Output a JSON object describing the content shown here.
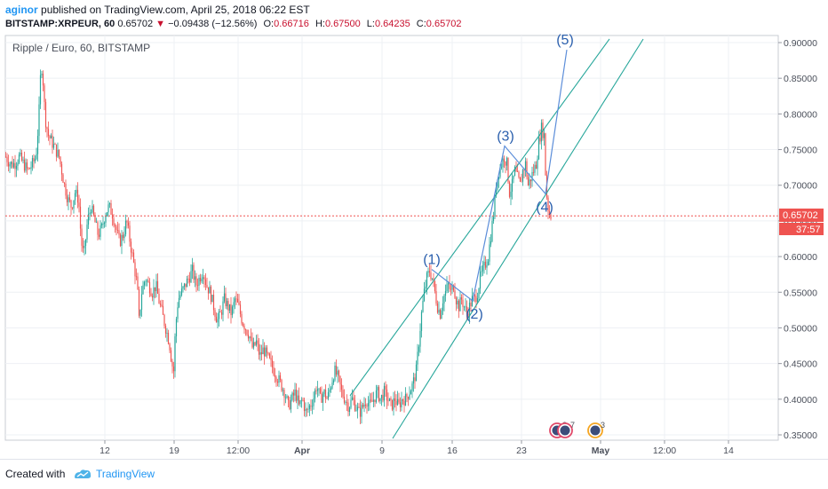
{
  "header": {
    "author": "aginor",
    "published_text": "published on TradingView.com, April 25, 2018 06:22 EST",
    "symbol": "BITSTAMP:XRPEUR, 60",
    "last": "0.65702",
    "change_arrow": "▼",
    "change": "−0.09438 (−12.56%)",
    "open_label": "O:",
    "open": "0.66716",
    "high_label": "H:",
    "high": "0.67500",
    "low_label": "L:",
    "low": "0.64235",
    "close_label": "C:",
    "close": "0.65702"
  },
  "footer": {
    "created_with": "Created with",
    "brand": "TradingView"
  },
  "colors": {
    "up": "#26a69a",
    "down": "#ef5350",
    "channel": "#26a69a",
    "wave": "#5b8dd9",
    "wave_label": "#2a5fad",
    "last_price": "#ef5350",
    "grid": "#eef0f4"
  },
  "chart_data": {
    "type": "candlestick",
    "title": "Ripple / Euro, 60, BITSTAMP",
    "x_ticks": [
      "12",
      "19",
      "12:00",
      "Apr",
      "9",
      "16",
      "23",
      "May",
      "12:00",
      "14"
    ],
    "y_ticks": [
      "0.90000",
      "0.85000",
      "0.80000",
      "0.75000",
      "0.70000",
      "0.65000",
      "0.60000",
      "0.55000",
      "0.50000",
      "0.45000",
      "0.40000",
      "0.35000"
    ],
    "ylim": [
      0.34,
      0.905
    ],
    "last_price": 0.65702,
    "last_price_label": "0.65702",
    "countdown": "37:57",
    "price_path": [
      [
        0,
        0.74
      ],
      [
        5,
        0.73
      ],
      [
        10,
        0.73
      ],
      [
        15,
        0.74
      ],
      [
        20,
        0.73
      ],
      [
        25,
        0.72
      ],
      [
        30,
        0.73
      ],
      [
        34,
        0.74
      ],
      [
        37,
        0.79
      ],
      [
        39,
        0.85
      ],
      [
        41,
        0.87
      ],
      [
        43,
        0.82
      ],
      [
        45,
        0.79
      ],
      [
        48,
        0.77
      ],
      [
        52,
        0.76
      ],
      [
        56,
        0.75
      ],
      [
        60,
        0.74
      ],
      [
        63,
        0.72
      ],
      [
        66,
        0.7
      ],
      [
        70,
        0.68
      ],
      [
        74,
        0.67
      ],
      [
        78,
        0.69
      ],
      [
        82,
        0.68
      ],
      [
        85,
        0.62
      ],
      [
        88,
        0.6
      ],
      [
        92,
        0.65
      ],
      [
        96,
        0.67
      ],
      [
        100,
        0.65
      ],
      [
        104,
        0.63
      ],
      [
        108,
        0.64
      ],
      [
        112,
        0.66
      ],
      [
        116,
        0.67
      ],
      [
        120,
        0.66
      ],
      [
        124,
        0.64
      ],
      [
        128,
        0.62
      ],
      [
        132,
        0.63
      ],
      [
        136,
        0.65
      ],
      [
        140,
        0.62
      ],
      [
        144,
        0.59
      ],
      [
        148,
        0.56
      ],
      [
        150,
        0.51
      ],
      [
        153,
        0.55
      ],
      [
        157,
        0.57
      ],
      [
        161,
        0.56
      ],
      [
        165,
        0.55
      ],
      [
        169,
        0.56
      ],
      [
        172,
        0.54
      ],
      [
        176,
        0.52
      ],
      [
        180,
        0.5
      ],
      [
        184,
        0.48
      ],
      [
        187,
        0.45
      ],
      [
        189,
        0.44
      ],
      [
        191,
        0.5
      ],
      [
        194,
        0.54
      ],
      [
        198,
        0.55
      ],
      [
        202,
        0.56
      ],
      [
        206,
        0.57
      ],
      [
        210,
        0.58
      ],
      [
        214,
        0.56
      ],
      [
        218,
        0.57
      ],
      [
        222,
        0.58
      ],
      [
        226,
        0.56
      ],
      [
        230,
        0.55
      ],
      [
        234,
        0.53
      ],
      [
        238,
        0.51
      ],
      [
        242,
        0.52
      ],
      [
        246,
        0.54
      ],
      [
        250,
        0.53
      ],
      [
        254,
        0.52
      ],
      [
        258,
        0.54
      ],
      [
        262,
        0.53
      ],
      [
        266,
        0.51
      ],
      [
        270,
        0.5
      ],
      [
        274,
        0.49
      ],
      [
        278,
        0.47
      ],
      [
        282,
        0.48
      ],
      [
        286,
        0.46
      ],
      [
        290,
        0.47
      ],
      [
        294,
        0.46
      ],
      [
        298,
        0.45
      ],
      [
        302,
        0.44
      ],
      [
        306,
        0.43
      ],
      [
        310,
        0.42
      ],
      [
        314,
        0.41
      ],
      [
        318,
        0.39
      ],
      [
        322,
        0.4
      ],
      [
        326,
        0.41
      ],
      [
        330,
        0.39
      ],
      [
        334,
        0.4
      ],
      [
        338,
        0.38
      ],
      [
        342,
        0.39
      ],
      [
        346,
        0.4
      ],
      [
        350,
        0.42
      ],
      [
        354,
        0.4
      ],
      [
        358,
        0.41
      ],
      [
        362,
        0.4
      ],
      [
        366,
        0.42
      ],
      [
        370,
        0.44
      ],
      [
        374,
        0.43
      ],
      [
        378,
        0.41
      ],
      [
        382,
        0.4
      ],
      [
        386,
        0.39
      ],
      [
        390,
        0.4
      ],
      [
        394,
        0.39
      ],
      [
        398,
        0.38
      ],
      [
        402,
        0.39
      ],
      [
        406,
        0.4
      ],
      [
        410,
        0.39
      ],
      [
        414,
        0.4
      ],
      [
        418,
        0.41
      ],
      [
        422,
        0.4
      ],
      [
        426,
        0.41
      ],
      [
        430,
        0.4
      ],
      [
        434,
        0.39
      ],
      [
        438,
        0.4
      ],
      [
        442,
        0.39
      ],
      [
        446,
        0.4
      ],
      [
        450,
        0.4
      ],
      [
        454,
        0.41
      ],
      [
        458,
        0.42
      ],
      [
        462,
        0.44
      ],
      [
        465,
        0.48
      ],
      [
        468,
        0.52
      ],
      [
        471,
        0.55
      ],
      [
        474,
        0.57
      ],
      [
        477,
        0.58
      ],
      [
        480,
        0.57
      ],
      [
        483,
        0.55
      ],
      [
        486,
        0.53
      ],
      [
        489,
        0.52
      ],
      [
        492,
        0.54
      ],
      [
        495,
        0.55
      ],
      [
        498,
        0.56
      ],
      [
        501,
        0.55
      ],
      [
        504,
        0.56
      ],
      [
        507,
        0.54
      ],
      [
        510,
        0.53
      ],
      [
        513,
        0.54
      ],
      [
        516,
        0.53
      ],
      [
        519,
        0.52
      ],
      [
        522,
        0.53
      ],
      [
        525,
        0.54
      ],
      [
        528,
        0.54
      ],
      [
        531,
        0.55
      ],
      [
        534,
        0.57
      ],
      [
        537,
        0.58
      ],
      [
        540,
        0.59
      ],
      [
        543,
        0.6
      ],
      [
        546,
        0.63
      ],
      [
        549,
        0.66
      ],
      [
        552,
        0.7
      ],
      [
        555,
        0.72
      ],
      [
        558,
        0.73
      ],
      [
        561,
        0.74
      ],
      [
        564,
        0.73
      ],
      [
        567,
        0.69
      ],
      [
        570,
        0.7
      ],
      [
        573,
        0.72
      ],
      [
        576,
        0.71
      ],
      [
        579,
        0.7
      ],
      [
        582,
        0.72
      ],
      [
        585,
        0.73
      ],
      [
        588,
        0.7
      ],
      [
        591,
        0.71
      ],
      [
        594,
        0.72
      ],
      [
        597,
        0.73
      ],
      [
        600,
        0.76
      ],
      [
        603,
        0.78
      ],
      [
        606,
        0.77
      ],
      [
        608,
        0.7
      ],
      [
        610,
        0.67
      ],
      [
        612,
        0.66
      ],
      [
        614,
        0.657
      ]
    ],
    "channel_lines": [
      {
        "x1": 388,
        "y1": 0.405,
        "x2": 680,
        "y2": 0.905
      },
      {
        "x1": 436,
        "y1": 0.345,
        "x2": 718,
        "y2": 0.905
      }
    ],
    "wave_path": [
      [
        480,
        0.582
      ],
      [
        526,
        0.538
      ],
      [
        562,
        0.755
      ],
      [
        608,
        0.688
      ],
      [
        632,
        0.89
      ]
    ],
    "wave_labels": [
      {
        "label": "(1)",
        "x": 480,
        "y": 0.582,
        "pos": "above"
      },
      {
        "label": "(2)",
        "x": 528,
        "y": 0.538,
        "pos": "below"
      },
      {
        "label": "(3)",
        "x": 563,
        "y": 0.755,
        "pos": "above"
      },
      {
        "label": "(4)",
        "x": 607,
        "y": 0.688,
        "pos": "below"
      },
      {
        "label": "(5)",
        "x": 630,
        "y": 0.89,
        "pos": "above"
      }
    ],
    "events": [
      {
        "label": "2",
        "x": 625
      },
      {
        "label": "7",
        "x": 634
      },
      {
        "label": "3",
        "x": 668
      }
    ]
  }
}
